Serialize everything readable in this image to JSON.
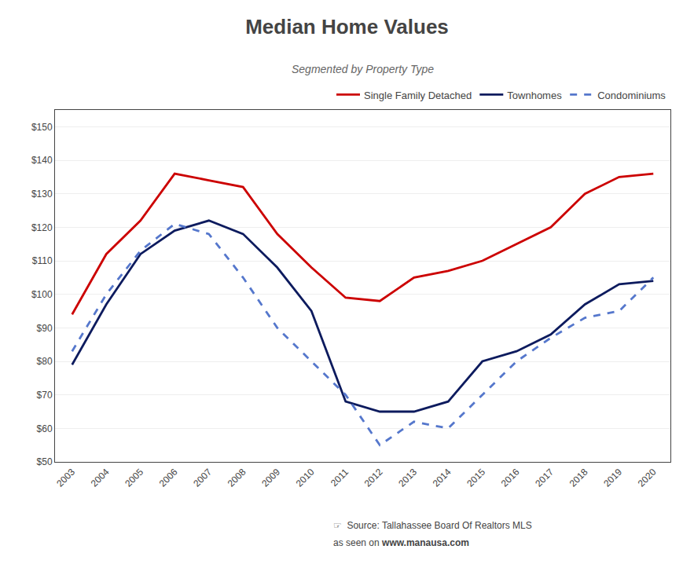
{
  "chart_data": {
    "type": "line",
    "title": "Median Home Values",
    "subtitle": "Segmented by Property Type",
    "x": [
      2003,
      2004,
      2005,
      2006,
      2007,
      2008,
      2009,
      2010,
      2011,
      2012,
      2013,
      2014,
      2015,
      2016,
      2017,
      2018,
      2019,
      2020
    ],
    "series": [
      {
        "name": "Single Family Detached",
        "color": "#cc0000",
        "line_style": "solid",
        "values": [
          94,
          112,
          122,
          136,
          134,
          132,
          118,
          108,
          99,
          98,
          105,
          107,
          110,
          115,
          120,
          130,
          135,
          136
        ]
      },
      {
        "name": "Townhomes",
        "color": "#0d1b5e",
        "line_style": "solid",
        "values": [
          79,
          97,
          112,
          119,
          122,
          118,
          108,
          95,
          68,
          65,
          65,
          68,
          80,
          83,
          88,
          97,
          103,
          104
        ]
      },
      {
        "name": "Condominiums",
        "color": "#5577cc",
        "line_style": "dashed",
        "values": [
          83,
          100,
          113,
          121,
          118,
          105,
          90,
          80,
          70,
          55,
          62,
          60,
          70,
          80,
          87,
          93,
          95,
          105
        ]
      }
    ],
    "xlim": [
      2002.5,
      2020.5
    ],
    "xticks": [
      2003,
      2004,
      2005,
      2006,
      2007,
      2008,
      2009,
      2010,
      2011,
      2012,
      2013,
      2014,
      2015,
      2016,
      2017,
      2018,
      2019,
      2020
    ],
    "ylim": [
      50,
      155
    ],
    "yticks": [
      {
        "value": 50,
        "label": "$50"
      },
      {
        "value": 60,
        "label": "$60"
      },
      {
        "value": 70,
        "label": "$70"
      },
      {
        "value": 80,
        "label": "$80"
      },
      {
        "value": 90,
        "label": "$90"
      },
      {
        "value": 100,
        "label": "$100"
      },
      {
        "value": 110,
        "label": "$110"
      },
      {
        "value": 120,
        "label": "$120"
      },
      {
        "value": 130,
        "label": "$130"
      },
      {
        "value": 140,
        "label": "$140"
      },
      {
        "value": 150,
        "label": "$150"
      }
    ],
    "grid": "y",
    "legend": "upper right",
    "annotations": [
      "☞  Source: Tallahassee Board Of Realtors MLS",
      "as seen on ",
      "www.manausa.com"
    ]
  }
}
